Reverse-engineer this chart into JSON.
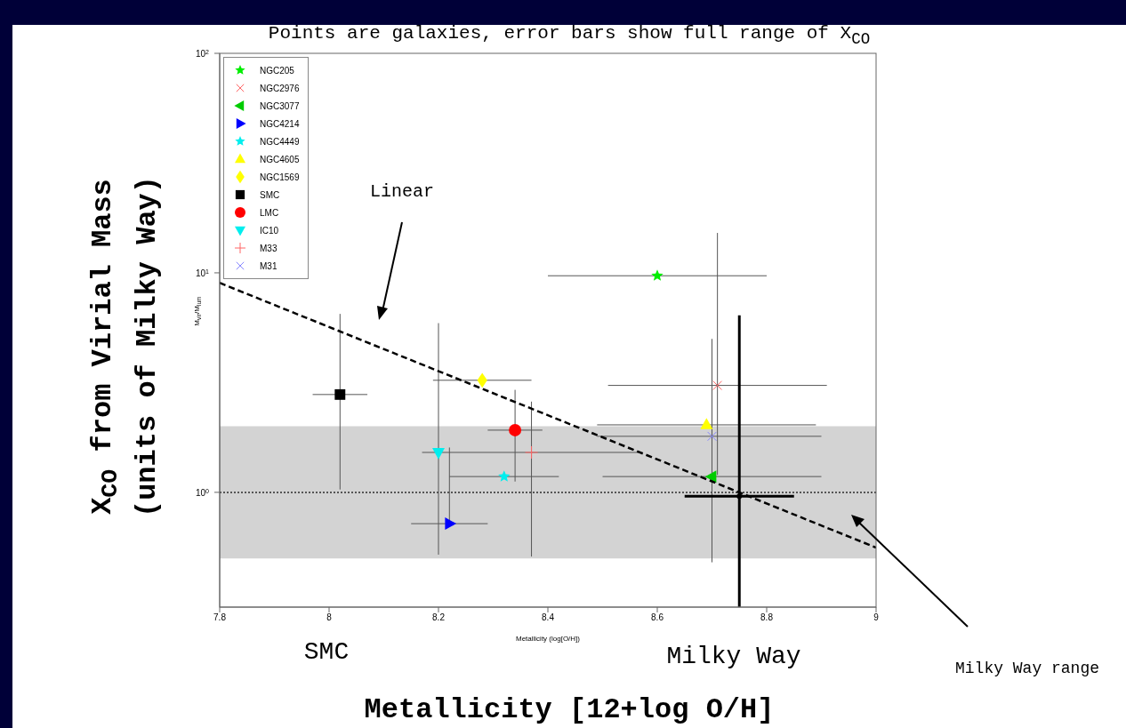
{
  "chart_data": {
    "type": "scatter",
    "title": "Points are galaxies, error bars show full range of X$_{CO}$",
    "xlabel": "Metallicity [12+log O/H]",
    "ylabel": "X$_{CO}$ from Virial Mass (units of Milky Way)",
    "xlim": [
      7.8,
      9
    ],
    "xticks": [
      7.8,
      8,
      8.2,
      8.4,
      8.6,
      8.8,
      9
    ],
    "ylim": [
      0.3,
      100
    ],
    "yticks": [
      {
        "value": 1,
        "label": "10$^{0}$"
      },
      {
        "value": 10,
        "label": "10$^{1}$"
      },
      {
        "value": 100,
        "label": "10$^{2}$"
      }
    ],
    "log": "y",
    "legend": "top left",
    "series": [
      {
        "name": "NGC205",
        "color": "#00ee00",
        "marker": "star",
        "x": [
          8.6
        ],
        "values": [
          9.7
        ],
        "xerrors": [
          [
            8.4,
            8.8
          ]
        ]
      },
      {
        "name": "NGC2976",
        "color": "#ff6666",
        "marker": "cross",
        "x": [
          8.71
        ],
        "values": [
          3.07
        ],
        "xerrors": [
          [
            8.51,
            8.91
          ]
        ],
        "errors": [
          [
            1.2,
            15.2
          ]
        ]
      },
      {
        "name": "NGC3077",
        "color": "#00cc00",
        "marker": "triangle-left",
        "x": [
          8.7
        ],
        "values": [
          1.18
        ],
        "xerrors": [
          [
            8.5,
            8.9
          ]
        ],
        "errors": [
          [
            1.18,
            2.03
          ]
        ]
      },
      {
        "name": "NGC4214",
        "color": "#0000ff",
        "marker": "triangle-right",
        "x": [
          8.22
        ],
        "values": [
          0.72
        ],
        "xerrors": [
          [
            8.15,
            8.29
          ]
        ],
        "errors": [
          [
            0.72,
            1.6
          ]
        ]
      },
      {
        "name": "NGC4449",
        "color": "#00eeee",
        "marker": "star",
        "x": [
          8.32
        ],
        "values": [
          1.18
        ],
        "xerrors": [
          [
            8.22,
            8.42
          ]
        ]
      },
      {
        "name": "NGC4605",
        "color": "#ffff00",
        "marker": "triangle",
        "x": [
          8.69
        ],
        "values": [
          2.03
        ],
        "xerrors": [
          [
            8.49,
            8.89
          ]
        ]
      },
      {
        "name": "NGC1569",
        "color": "#ffff00",
        "marker": "diamond",
        "x": [
          8.28
        ],
        "values": [
          3.24
        ],
        "xerrors": [
          [
            8.19,
            8.37
          ]
        ]
      },
      {
        "name": "SMC",
        "color": "#000000",
        "marker": "square",
        "x": [
          8.02
        ],
        "values": [
          2.79
        ],
        "xerrors": [
          [
            7.97,
            8.07
          ]
        ],
        "errors": [
          [
            1.03,
            6.5
          ]
        ]
      },
      {
        "name": "LMC",
        "color": "#ff0000",
        "marker": "circle",
        "x": [
          8.34
        ],
        "values": [
          1.92
        ],
        "xerrors": [
          [
            8.29,
            8.39
          ]
        ],
        "errors": [
          [
            1.12,
            2.93
          ]
        ]
      },
      {
        "name": "IC10",
        "color": "#00eeee",
        "marker": "triangle-down",
        "x": [
          8.2
        ],
        "values": [
          1.52
        ],
        "errors": [
          [
            0.52,
            5.9
          ]
        ]
      },
      {
        "name": "M33",
        "color": "#ff6666",
        "marker": "plus",
        "x": [
          8.37
        ],
        "values": [
          1.52
        ],
        "xerrors": [
          [
            8.17,
            8.57
          ]
        ],
        "errors": [
          [
            0.51,
            2.59
          ]
        ]
      },
      {
        "name": "M31",
        "color": "#8888ff",
        "marker": "cross",
        "x": [
          8.7
        ],
        "values": [
          1.8
        ],
        "xerrors": [
          [
            8.49,
            8.9
          ]
        ],
        "errors": [
          [
            0.48,
            5.0
          ]
        ]
      },
      {
        "color": "#000000",
        "marker": "circle",
        "x": [
          8.75
        ],
        "values": [
          0.96
        ],
        "xerrors": [
          [
            8.65,
            8.85
          ]
        ],
        "errors": [
          [
            0.3,
            6.4
          ]
        ]
      },
      {
        "type": "line",
        "color": "#000000",
        "line_style": "dashed",
        "marker": "none",
        "x": [
          7.8,
          9
        ],
        "values": [
          9,
          0.56
        ]
      }
    ],
    "ref_lines": [
      {
        "axis": "y",
        "value": 1,
        "line_style": "dotted",
        "color": "#555555"
      }
    ],
    "bands": [
      {
        "axis": "y",
        "from": 0.5,
        "to": 2,
        "color": "#d3d3d3"
      }
    ],
    "annotations": [
      "M$_{vir}$/M$_{lum}$",
      "Metallicity (log[O/H])",
      "Linear",
      "SMC",
      "Milky Way",
      "Milky Way range"
    ]
  }
}
